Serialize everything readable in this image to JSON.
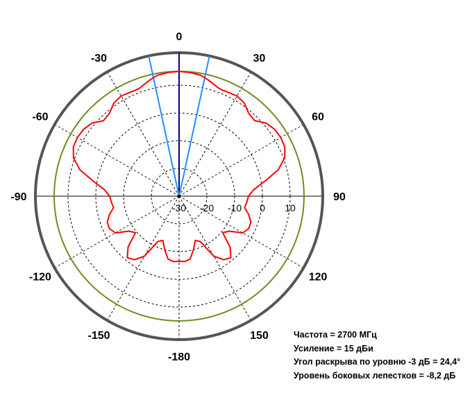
{
  "chart_data": {
    "type": "polar",
    "title": "",
    "angle_labels": [
      "0",
      "30",
      "60",
      "90",
      "120",
      "150",
      "-180",
      "-150",
      "-120",
      "-90",
      "-60",
      "-30"
    ],
    "angle_values": [
      0,
      30,
      60,
      90,
      120,
      150,
      180,
      -150,
      -120,
      -90,
      -60,
      -30
    ],
    "radial_labels": [
      "-30",
      "-20",
      "-10",
      "0",
      "10"
    ],
    "radial_values": [
      -30,
      -20,
      -10,
      0,
      10
    ],
    "radial_range_db": [
      -30,
      20
    ],
    "grid": true,
    "colors": {
      "pattern": "#ff0000",
      "gain_circle": "#6b8e23",
      "main_axis": "#00008b",
      "beamwidth_lines": "#1e90ff",
      "outer_ring": "#555555",
      "grid": "#000000"
    },
    "gain_circle_db": 15,
    "beamwidth_deg": 24.4,
    "series": [
      {
        "angles_deg": [
          0,
          5,
          10,
          12,
          15,
          18,
          20,
          22,
          25,
          30,
          35,
          40,
          45,
          50,
          55,
          60,
          65,
          70,
          75,
          80,
          85,
          90,
          95,
          100,
          105,
          110,
          115,
          120,
          125,
          130,
          135,
          140,
          145,
          150,
          155,
          160,
          165,
          170,
          175,
          180,
          -175,
          -170,
          -165,
          -160,
          -155,
          -150,
          -145,
          -140,
          -135,
          -130,
          -125,
          -120,
          -115,
          -110,
          -105,
          -100,
          -95,
          -90,
          -85,
          -80,
          -75,
          -70,
          -65,
          -60,
          -55,
          -50,
          -45,
          -40,
          -35,
          -30,
          -25,
          -22,
          -20,
          -18,
          -15,
          -12,
          -10,
          -5
        ],
        "gain_db": [
          15,
          14.8,
          14.3,
          13.8,
          12.9,
          12.0,
          11.5,
          11.3,
          11.4,
          11.7,
          11.0,
          9.0,
          8.5,
          11.0,
          12.0,
          12.3,
          12.0,
          10.5,
          7.0,
          1.5,
          -3.0,
          -5.0,
          -5.5,
          -6.0,
          -4.0,
          -2.5,
          -2.3,
          -3.5,
          -8.0,
          -9.5,
          -4.0,
          -1.0,
          -2.0,
          -5.0,
          -12.0,
          -13.0,
          -10.0,
          -7.0,
          -6.3,
          -6.5,
          -6.3,
          -7.0,
          -10.0,
          -13.0,
          -12.0,
          -5.0,
          -2.0,
          -1.0,
          -4.0,
          -9.5,
          -8.0,
          -3.5,
          -2.3,
          -2.5,
          -4.0,
          -6.0,
          -5.5,
          -5.0,
          -3.0,
          1.5,
          7.0,
          10.5,
          12.0,
          12.3,
          12.0,
          11.0,
          8.5,
          9.0,
          11.0,
          11.7,
          11.4,
          11.3,
          11.5,
          12.0,
          12.9,
          13.8,
          14.3,
          14.8
        ]
      }
    ]
  },
  "info": {
    "frequency": "Частота = 2700 МГц",
    "gain": "Усиление = 15 дБи",
    "beamwidth": "Угол раскрыва по уровню -3 дБ = 24,4°",
    "sidelobe": "Уровень боковых лепестков = -8,2 дБ"
  }
}
